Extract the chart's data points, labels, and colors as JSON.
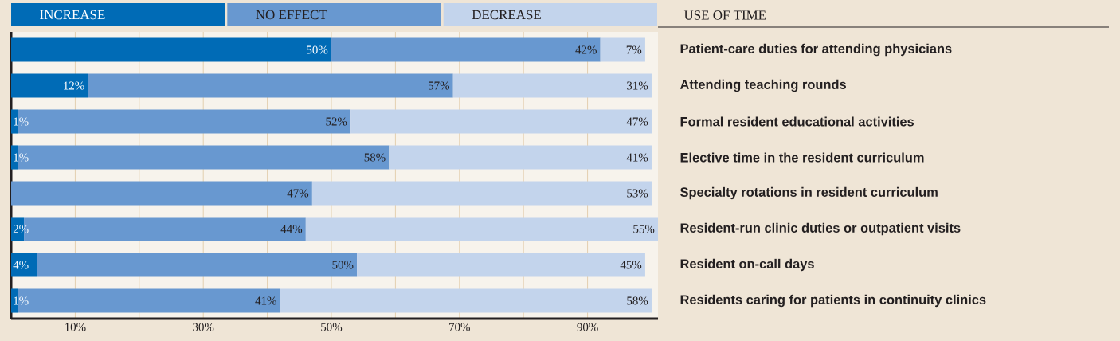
{
  "chart_data": {
    "type": "bar",
    "orientation": "horizontal",
    "stacked": true,
    "ylabel": "USE OF TIME",
    "categories": [
      "Patient-care duties for attending physicians",
      "Attending teaching rounds",
      "Formal resident educational activities",
      "Elective time in the resident curriculum",
      "Specialty rotations in resident curriculum",
      "Resident-run clinic duties or outpatient visits",
      "Resident on-call days",
      "Residents caring for patients in continuity clinics"
    ],
    "series": [
      {
        "name": "INCREASE",
        "color": "#006bb6",
        "values": [
          50,
          12,
          1,
          1,
          null,
          2,
          4,
          1
        ],
        "value_labels": [
          "50%",
          "12%",
          "1%",
          "1%",
          null,
          "2%",
          "4%",
          "1%"
        ]
      },
      {
        "name": "NO EFFECT",
        "color": "#6898d0",
        "values": [
          42,
          57,
          52,
          58,
          47,
          44,
          50,
          41
        ],
        "value_labels": [
          "42%",
          "57%",
          "52%",
          "58%",
          "47%",
          "44%",
          "50%",
          "41%"
        ]
      },
      {
        "name": "DECREASE",
        "color": "#c3d4ec",
        "values": [
          7,
          31,
          47,
          41,
          53,
          55,
          45,
          58
        ],
        "value_labels": [
          "7%",
          "31%",
          "47%",
          "41%",
          "53%",
          "55%",
          "45%",
          "58%"
        ]
      }
    ],
    "xlim": [
      0,
      101
    ],
    "xticks": [
      {
        "value": 10,
        "label": "10%"
      },
      {
        "value": 20,
        "label": null
      },
      {
        "value": 30,
        "label": "30%"
      },
      {
        "value": 40,
        "label": null
      },
      {
        "value": 50,
        "label": "50%"
      },
      {
        "value": 60,
        "label": null
      },
      {
        "value": 70,
        "label": "70%"
      },
      {
        "value": 80,
        "label": null
      },
      {
        "value": 90,
        "label": "90%"
      }
    ],
    "grid": "x",
    "legend": "top"
  }
}
